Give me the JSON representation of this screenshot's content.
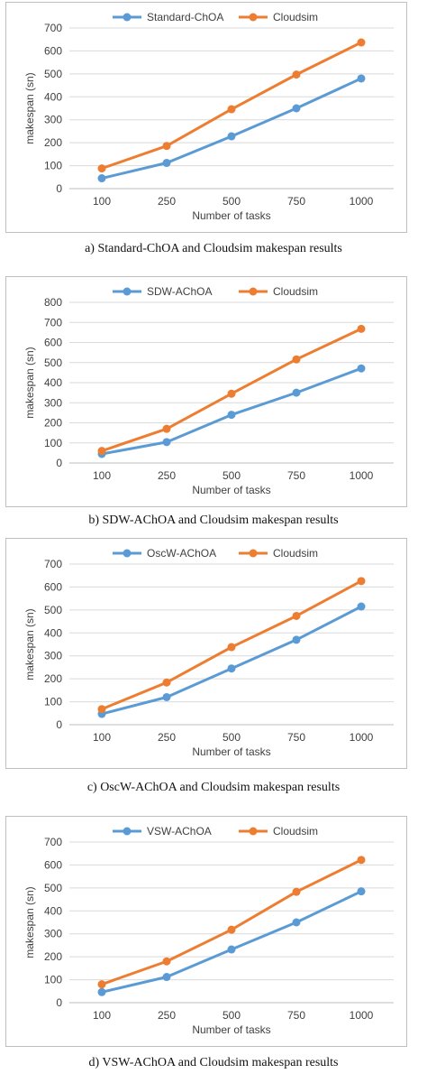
{
  "colors": {
    "series_a": "#5b9bd5",
    "series_b": "#ed7d31",
    "grid": "#d9d9d9",
    "axis": "#bfbfbf"
  },
  "chart_data": [
    {
      "type": "line",
      "caption": "a) Standard-ChOA and Cloudsim makespan results",
      "xlabel": "Number of tasks",
      "ylabel": "makespan (sn)",
      "categories": [
        "100",
        "250",
        "500",
        "750",
        "1000"
      ],
      "ylim": [
        0,
        700
      ],
      "yticks": [
        0,
        100,
        200,
        300,
        400,
        500,
        600,
        700
      ],
      "legend": "top",
      "grid": true,
      "series": [
        {
          "name": "Standard-ChOA",
          "values": [
            45,
            112,
            228,
            350,
            480
          ]
        },
        {
          "name": "Cloudsim",
          "values": [
            88,
            186,
            346,
            497,
            637
          ]
        }
      ]
    },
    {
      "type": "line",
      "caption": "b) SDW-AChOA and Cloudsim makespan results",
      "xlabel": "Number of tasks",
      "ylabel": "makespan (sn)",
      "categories": [
        "100",
        "250",
        "500",
        "750",
        "1000"
      ],
      "ylim": [
        0,
        800
      ],
      "yticks": [
        0,
        100,
        200,
        300,
        400,
        500,
        600,
        700,
        800
      ],
      "legend": "top",
      "grid": true,
      "series": [
        {
          "name": "SDW-AChOA",
          "values": [
            45,
            104,
            240,
            350,
            471
          ]
        },
        {
          "name": "Cloudsim",
          "values": [
            60,
            170,
            345,
            516,
            668
          ]
        }
      ]
    },
    {
      "type": "line",
      "caption": "c) OscW-AChOA and Cloudsim makespan results",
      "xlabel": "Number of tasks",
      "ylabel": "makespan (sn)",
      "categories": [
        "100",
        "250",
        "500",
        "750",
        "1000"
      ],
      "ylim": [
        0,
        700
      ],
      "yticks": [
        0,
        100,
        200,
        300,
        400,
        500,
        600,
        700
      ],
      "legend": "top",
      "grid": true,
      "series": [
        {
          "name": "OscW-AChOA",
          "values": [
            47,
            120,
            245,
            370,
            515
          ]
        },
        {
          "name": "Cloudsim",
          "values": [
            68,
            184,
            338,
            474,
            626
          ]
        }
      ]
    },
    {
      "type": "line",
      "caption": "d) VSW-AChOA and Cloudsim makespan results",
      "xlabel": "Number of tasks",
      "ylabel": "makespan (sn)",
      "categories": [
        "100",
        "250",
        "500",
        "750",
        "1000"
      ],
      "ylim": [
        0,
        700
      ],
      "yticks": [
        0,
        100,
        200,
        300,
        400,
        500,
        600,
        700
      ],
      "legend": "top",
      "grid": true,
      "series": [
        {
          "name": "VSW-AChOA",
          "values": [
            46,
            112,
            232,
            350,
            485
          ]
        },
        {
          "name": "Cloudsim",
          "values": [
            80,
            180,
            318,
            483,
            622
          ]
        }
      ]
    }
  ]
}
